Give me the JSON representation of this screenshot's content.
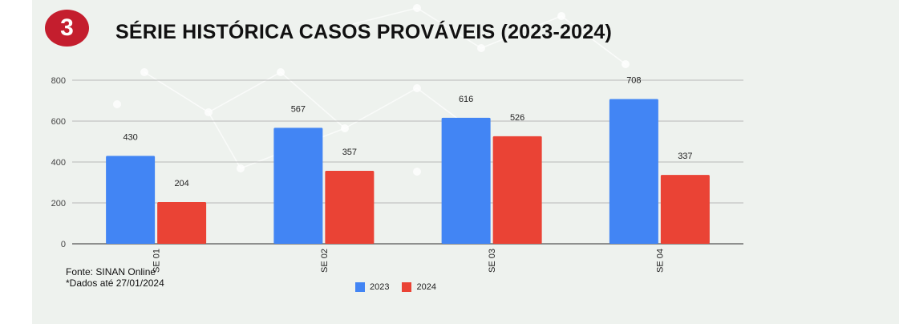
{
  "header": {
    "badge": "3",
    "title": "SÉRIE HISTÓRICA CASOS PROVÁVEIS (2023-2024)"
  },
  "footnotes": {
    "source": "Fonte: SINAN Online",
    "date": "*Dados até 27/01/2024"
  },
  "colors": {
    "series_2023": "#4285f4",
    "series_2024": "#ea4335",
    "badge": "#c41e2e"
  },
  "chart_data": {
    "type": "bar",
    "categories": [
      "SE 01",
      "SE 02",
      "SE 03",
      "SE 04"
    ],
    "series": [
      {
        "name": "2023",
        "values": [
          430,
          567,
          616,
          708
        ],
        "color": "#4285f4"
      },
      {
        "name": "2024",
        "values": [
          204,
          357,
          526,
          337
        ],
        "color": "#ea4335"
      }
    ],
    "yticks": [
      0,
      200,
      400,
      600,
      800
    ],
    "ylim": [
      0,
      800
    ],
    "grid": true,
    "legend_position": "bottom"
  }
}
